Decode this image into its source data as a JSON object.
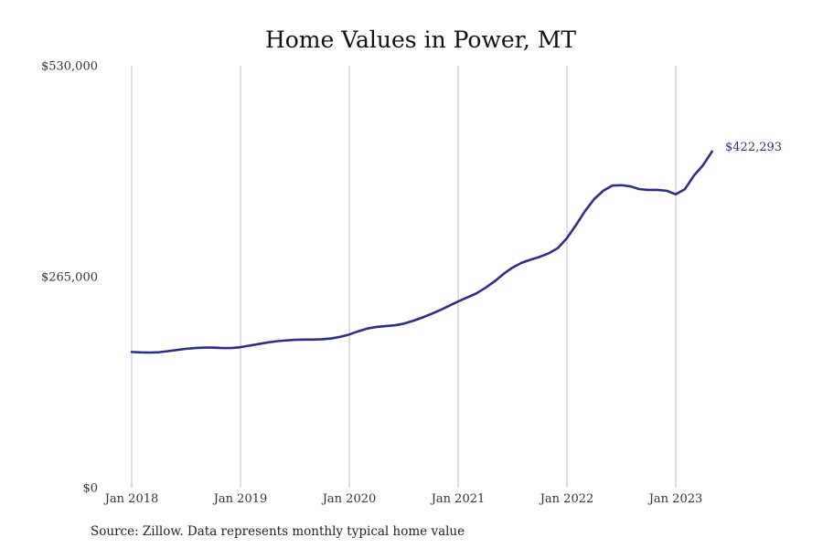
{
  "chart_data": {
    "type": "line",
    "title": "Home Values in Power, MT",
    "xlabel": "",
    "ylabel": "",
    "source": "Source: Zillow. Data represents monthly typical home value",
    "ylim": [
      0,
      530000
    ],
    "yticks": [
      {
        "value": 0,
        "label": "$0"
      },
      {
        "value": 265000,
        "label": "$265,000"
      },
      {
        "value": 530000,
        "label": "$530,000"
      }
    ],
    "xticks": [
      {
        "value": "2018-01",
        "label": "Jan 2018"
      },
      {
        "value": "2019-01",
        "label": "Jan 2019"
      },
      {
        "value": "2020-01",
        "label": "Jan 2020"
      },
      {
        "value": "2021-01",
        "label": "Jan 2021"
      },
      {
        "value": "2022-01",
        "label": "Jan 2022"
      },
      {
        "value": "2023-01",
        "label": "Jan 2023"
      }
    ],
    "x_grid": true,
    "y_grid": false,
    "line_color": "#2e2e8a",
    "end_label": "$422,293",
    "series": [
      {
        "x": [
          "2018-01",
          "2018-02",
          "2018-03",
          "2018-04",
          "2018-05",
          "2018-06",
          "2018-07",
          "2018-08",
          "2018-09",
          "2018-10",
          "2018-11",
          "2018-12",
          "2019-01",
          "2019-02",
          "2019-03",
          "2019-04",
          "2019-05",
          "2019-06",
          "2019-07",
          "2019-08",
          "2019-09",
          "2019-10",
          "2019-11",
          "2019-12",
          "2020-01",
          "2020-02",
          "2020-03",
          "2020-04",
          "2020-05",
          "2020-06",
          "2020-07",
          "2020-08",
          "2020-09",
          "2020-10",
          "2020-11",
          "2020-12",
          "2021-01",
          "2021-02",
          "2021-03",
          "2021-04",
          "2021-05",
          "2021-06",
          "2021-07",
          "2021-08",
          "2021-09",
          "2021-10",
          "2021-11",
          "2021-12",
          "2022-01",
          "2022-02",
          "2022-03",
          "2022-04",
          "2022-05",
          "2022-06",
          "2022-07",
          "2022-08",
          "2022-09",
          "2022-10",
          "2022-11",
          "2022-12",
          "2023-01",
          "2023-02",
          "2023-03",
          "2023-04",
          "2023-05"
        ],
        "values": [
          170500,
          170000,
          169800,
          170200,
          171500,
          173000,
          174500,
          175500,
          176000,
          176000,
          175500,
          175500,
          176500,
          178500,
          180500,
          182500,
          184000,
          185000,
          185800,
          186000,
          186000,
          186500,
          187500,
          189500,
          192500,
          196500,
          200000,
          202000,
          203000,
          204000,
          206000,
          209500,
          213500,
          218000,
          223000,
          228500,
          234000,
          239000,
          244000,
          251000,
          259000,
          268500,
          276500,
          282500,
          286500,
          290000,
          294500,
          301000,
          313500,
          330000,
          347500,
          362500,
          373000,
          379500,
          380000,
          378500,
          375000,
          374000,
          374000,
          373000,
          368500,
          375000,
          392000,
          405000,
          422293
        ]
      }
    ]
  }
}
